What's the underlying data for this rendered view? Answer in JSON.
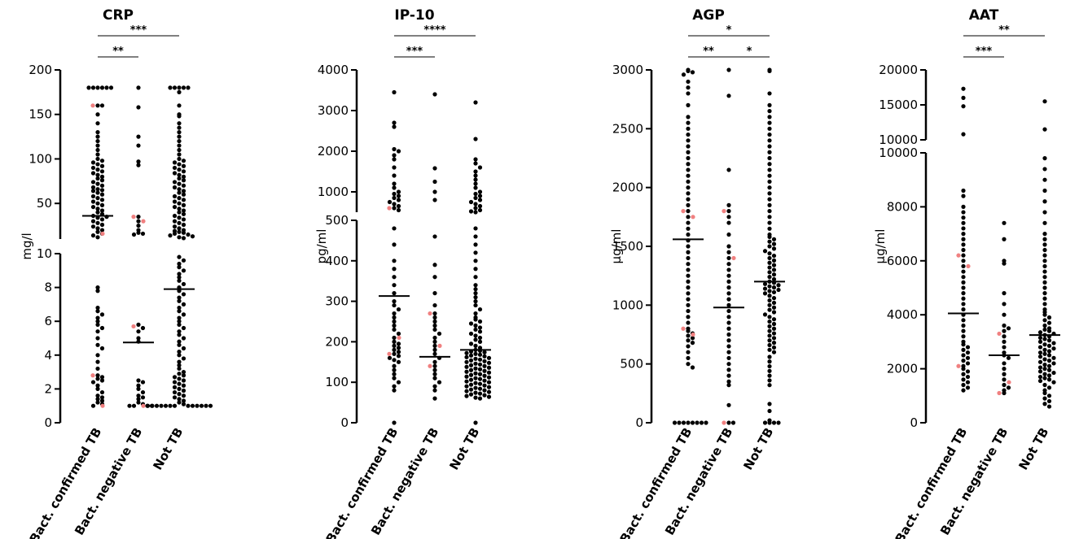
{
  "chart_data": [
    {
      "type": "scatter",
      "title": "CRP",
      "ylabel": "mg/l",
      "categories": [
        "Bact. confirmed TB",
        "Bact. negative TB",
        "Not TB"
      ],
      "segments": [
        {
          "ylim": [
            0,
            10
          ],
          "ticks": [
            "0",
            "2",
            "4",
            "6",
            "8",
            "10"
          ]
        },
        {
          "ylim": [
            10,
            200
          ],
          "ticks": [
            "50",
            "100",
            "150",
            "200"
          ]
        }
      ],
      "medians": [
        36,
        4.75,
        7.9
      ],
      "highlight_color": "#f08080",
      "series": [
        {
          "values": [
            180,
            180,
            180,
            180,
            180,
            180,
            160,
            160,
            150,
            140,
            130,
            125,
            120,
            115,
            110,
            105,
            100,
            98,
            96,
            94,
            92,
            90,
            88,
            86,
            84,
            82,
            80,
            78,
            76,
            74,
            72,
            70,
            68,
            66,
            65,
            64,
            62,
            60,
            58,
            56,
            54,
            52,
            50,
            48,
            46,
            44,
            42,
            40,
            38,
            36,
            35,
            34,
            32,
            30,
            28,
            26,
            24,
            22,
            20,
            18,
            16,
            14,
            12,
            8,
            7.8,
            6.8,
            6.6,
            6.4,
            6.2,
            6,
            5.8,
            5.6,
            5.4,
            5,
            4.6,
            4.4,
            4,
            3.6,
            3.2,
            2.8,
            2.7,
            2.6,
            2.5,
            2.4,
            2.2,
            2,
            1.8,
            1.6,
            1.5,
            1.4,
            1.3,
            1.2,
            1.1,
            1
          ],
          "highlight": [
            160,
            16,
            2.8,
            1
          ]
        },
        {
          "values": [
            180,
            158,
            125,
            115,
            97,
            93,
            35,
            30,
            25,
            20,
            17,
            16,
            15,
            5.8,
            5.6,
            5.4,
            5,
            4.8,
            2.5,
            2.4,
            2.2,
            2,
            1.8,
            1.6,
            1.5,
            1.4,
            1.2,
            1.1,
            1,
            1,
            1,
            1
          ],
          "highlight": [
            35,
            30,
            5.7,
            1
          ]
        },
        {
          "values": [
            180,
            180,
            180,
            180,
            180,
            175,
            160,
            150,
            148,
            140,
            135,
            130,
            125,
            120,
            115,
            110,
            105,
            100,
            98,
            96,
            94,
            92,
            90,
            88,
            86,
            84,
            82,
            80,
            78,
            76,
            74,
            72,
            70,
            68,
            66,
            64,
            62,
            60,
            58,
            56,
            54,
            52,
            50,
            48,
            46,
            44,
            42,
            40,
            38,
            36,
            34,
            32,
            30,
            28,
            26,
            24,
            22,
            20,
            19,
            18,
            17,
            16,
            15,
            14,
            13,
            12,
            11,
            9.8,
            9.6,
            9.4,
            9.2,
            9,
            8.8,
            8.6,
            8.4,
            8.2,
            8,
            7.8,
            7.6,
            7.4,
            7.2,
            7,
            6.8,
            6.6,
            6.4,
            6.2,
            6,
            5.8,
            5.6,
            5.4,
            5.2,
            5,
            4.8,
            4.6,
            4.4,
            4.2,
            4,
            3.8,
            3.6,
            3.4,
            3.2,
            3,
            2.9,
            2.8,
            2.7,
            2.6,
            2.5,
            2.4,
            2.3,
            2.2,
            2.1,
            2,
            1.9,
            1.8,
            1.7,
            1.6,
            1.5,
            1.4,
            1.3,
            1.2,
            1.1,
            1,
            1,
            1,
            1,
            1,
            1,
            1,
            1,
            1,
            1,
            1,
            1,
            1
          ],
          "highlight": []
        }
      ],
      "significance": [
        {
          "from": 0,
          "to": 1,
          "label": "**"
        },
        {
          "from": 0,
          "to": 2,
          "label": "***"
        }
      ]
    },
    {
      "type": "scatter",
      "title": "IP-10",
      "ylabel": "pg/ml",
      "categories": [
        "Bact. confirmed TB",
        "Bact. negative TB",
        "Not TB"
      ],
      "segments": [
        {
          "ylim": [
            0,
            500
          ],
          "ticks": [
            "0",
            "100",
            "200",
            "300",
            "400",
            "500"
          ]
        },
        {
          "ylim": [
            500,
            4000
          ],
          "ticks": [
            "1000",
            "2000",
            "3000",
            "4000"
          ]
        }
      ],
      "medians": [
        313,
        163,
        180
      ],
      "highlight_color": "#f08080",
      "series": [
        {
          "values": [
            3450,
            2700,
            2600,
            2050,
            2000,
            1900,
            1800,
            1600,
            1400,
            1200,
            1100,
            1000,
            950,
            900,
            850,
            800,
            750,
            700,
            650,
            600,
            550,
            480,
            440,
            400,
            380,
            360,
            340,
            320,
            300,
            290,
            280,
            270,
            260,
            250,
            240,
            230,
            220,
            210,
            200,
            195,
            190,
            185,
            180,
            175,
            170,
            165,
            160,
            155,
            150,
            140,
            130,
            120,
            110,
            100,
            90,
            80,
            0
          ],
          "highlight": [
            600,
            210,
            170
          ]
        },
        {
          "values": [
            3400,
            1580,
            1250,
            1000,
            800,
            460,
            390,
            360,
            320,
            290,
            270,
            260,
            250,
            240,
            230,
            220,
            210,
            200,
            190,
            180,
            170,
            160,
            150,
            140,
            130,
            120,
            110,
            100,
            90,
            80,
            60
          ],
          "highlight": [
            270,
            190,
            140
          ]
        },
        {
          "values": [
            3200,
            2300,
            1800,
            1700,
            1600,
            1500,
            1400,
            1300,
            1200,
            1100,
            1000,
            950,
            900,
            850,
            800,
            750,
            700,
            650,
            600,
            550,
            520,
            500,
            480,
            460,
            440,
            420,
            400,
            380,
            360,
            340,
            330,
            320,
            310,
            300,
            290,
            280,
            270,
            260,
            255,
            250,
            245,
            240,
            235,
            230,
            225,
            220,
            215,
            210,
            205,
            200,
            195,
            190,
            185,
            180,
            178,
            176,
            174,
            172,
            170,
            168,
            166,
            164,
            162,
            160,
            158,
            156,
            154,
            152,
            150,
            148,
            146,
            144,
            142,
            140,
            138,
            136,
            134,
            132,
            130,
            128,
            126,
            124,
            122,
            120,
            118,
            116,
            114,
            112,
            110,
            108,
            106,
            104,
            102,
            100,
            98,
            96,
            94,
            92,
            90,
            88,
            86,
            84,
            82,
            80,
            78,
            76,
            74,
            72,
            70,
            68,
            66,
            64,
            62,
            60,
            0
          ],
          "highlight": []
        }
      ],
      "significance": [
        {
          "from": 0,
          "to": 1,
          "label": "***"
        },
        {
          "from": 0,
          "to": 2,
          "label": "****"
        }
      ]
    },
    {
      "type": "scatter",
      "title": "AGP",
      "ylabel": "µg/ml",
      "categories": [
        "Bact. confirmed TB",
        "Bact. negative TB",
        "Not TB"
      ],
      "segments": [
        {
          "ylim": [
            0,
            3000
          ],
          "ticks": [
            "0",
            "500",
            "1000",
            "1500",
            "2000",
            "2500",
            "3000"
          ]
        }
      ],
      "medians": [
        1560,
        980,
        1200
      ],
      "highlight_color": "#f08080",
      "series": [
        {
          "values": [
            3000,
            2990,
            2980,
            2960,
            2900,
            2850,
            2800,
            2700,
            2600,
            2550,
            2500,
            2450,
            2400,
            2350,
            2300,
            2250,
            2200,
            2150,
            2100,
            2050,
            2000,
            1950,
            1900,
            1850,
            1800,
            1750,
            1700,
            1650,
            1600,
            1550,
            1500,
            1450,
            1400,
            1350,
            1300,
            1250,
            1200,
            1150,
            1100,
            1050,
            1000,
            950,
            900,
            850,
            800,
            780,
            760,
            740,
            720,
            700,
            680,
            650,
            600,
            550,
            500,
            470,
            0,
            0,
            0,
            0,
            0,
            0,
            0,
            0
          ],
          "highlight": [
            1800,
            1750,
            800,
            750
          ]
        },
        {
          "values": [
            3000,
            2780,
            2150,
            1850,
            1800,
            1750,
            1700,
            1600,
            1500,
            1450,
            1400,
            1350,
            1300,
            1250,
            1200,
            1150,
            1100,
            1050,
            1000,
            950,
            900,
            850,
            800,
            750,
            700,
            650,
            600,
            550,
            500,
            450,
            400,
            350,
            320,
            150,
            0,
            0
          ],
          "highlight": [
            1800,
            1400,
            0
          ]
        },
        {
          "values": [
            3000,
            2990,
            2800,
            2700,
            2650,
            2600,
            2550,
            2500,
            2450,
            2400,
            2350,
            2300,
            2250,
            2200,
            2150,
            2100,
            2050,
            2000,
            1950,
            1900,
            1850,
            1800,
            1750,
            1700,
            1650,
            1600,
            1580,
            1560,
            1540,
            1520,
            1500,
            1480,
            1460,
            1440,
            1420,
            1400,
            1380,
            1360,
            1340,
            1320,
            1300,
            1280,
            1260,
            1240,
            1220,
            1200,
            1190,
            1180,
            1170,
            1160,
            1150,
            1140,
            1130,
            1120,
            1110,
            1100,
            1080,
            1060,
            1040,
            1020,
            1000,
            980,
            960,
            940,
            920,
            900,
            880,
            860,
            840,
            820,
            800,
            780,
            760,
            740,
            720,
            700,
            680,
            660,
            640,
            620,
            600,
            560,
            520,
            480,
            440,
            400,
            360,
            320,
            160,
            100,
            20,
            0,
            0,
            0,
            0
          ],
          "highlight": []
        }
      ],
      "significance": [
        {
          "from": 0,
          "to": 1,
          "label": "**"
        },
        {
          "from": 1,
          "to": 2,
          "label": "*"
        },
        {
          "from": 0,
          "to": 2,
          "label": "*"
        }
      ]
    },
    {
      "type": "scatter",
      "title": "AAT",
      "ylabel": "µg/ml",
      "categories": [
        "Bact. confirmed TB",
        "Bact. negative TB",
        "Not TB"
      ],
      "segments": [
        {
          "ylim": [
            0,
            10000
          ],
          "ticks": [
            "0",
            "2000",
            "4000",
            "6000",
            "8000",
            "10000"
          ]
        },
        {
          "ylim": [
            10000,
            20000
          ],
          "ticks": [
            "10000",
            "15000",
            "20000"
          ]
        }
      ],
      "medians": [
        4050,
        2500,
        3250
      ],
      "highlight_color": "#f08080",
      "series": [
        {
          "values": [
            17300,
            16000,
            14800,
            10800,
            8600,
            8400,
            8000,
            7800,
            7600,
            7400,
            7200,
            7000,
            6800,
            6600,
            6400,
            6200,
            6000,
            5800,
            5600,
            5400,
            5200,
            5000,
            4800,
            4600,
            4400,
            4200,
            4000,
            3800,
            3600,
            3400,
            3200,
            3000,
            2900,
            2800,
            2700,
            2600,
            2500,
            2400,
            2300,
            2200,
            2100,
            2000,
            1900,
            1800,
            1700,
            1600,
            1500,
            1400,
            1300,
            1200
          ],
          "highlight": [
            6200,
            5800,
            2100
          ]
        },
        {
          "values": [
            7400,
            6800,
            6000,
            5900,
            4800,
            4400,
            4000,
            3600,
            3500,
            3400,
            3200,
            3000,
            2800,
            2600,
            2500,
            2400,
            2200,
            2000,
            1800,
            1600,
            1400,
            1300,
            1200,
            1100
          ],
          "highlight": [
            3300,
            1500,
            1100
          ]
        },
        {
          "values": [
            15500,
            11500,
            9800,
            9400,
            9000,
            8600,
            8200,
            7800,
            7400,
            7000,
            6800,
            6600,
            6400,
            6200,
            6000,
            5800,
            5600,
            5400,
            5200,
            5000,
            4800,
            4600,
            4400,
            4200,
            4100,
            4000,
            3900,
            3800,
            3700,
            3600,
            3500,
            3450,
            3400,
            3350,
            3300,
            3250,
            3200,
            3150,
            3100,
            3050,
            3000,
            2950,
            2900,
            2850,
            2800,
            2750,
            2700,
            2650,
            2600,
            2550,
            2500,
            2450,
            2400,
            2350,
            2300,
            2250,
            2200,
            2150,
            2100,
            2050,
            2000,
            1950,
            1900,
            1850,
            1800,
            1750,
            1700,
            1650,
            1600,
            1550,
            1500,
            1400,
            1300,
            1200,
            1100,
            1000,
            900,
            800,
            700,
            600
          ],
          "highlight": []
        }
      ],
      "significance": [
        {
          "from": 0,
          "to": 1,
          "label": "***"
        },
        {
          "from": 0,
          "to": 2,
          "label": "**"
        }
      ]
    }
  ]
}
